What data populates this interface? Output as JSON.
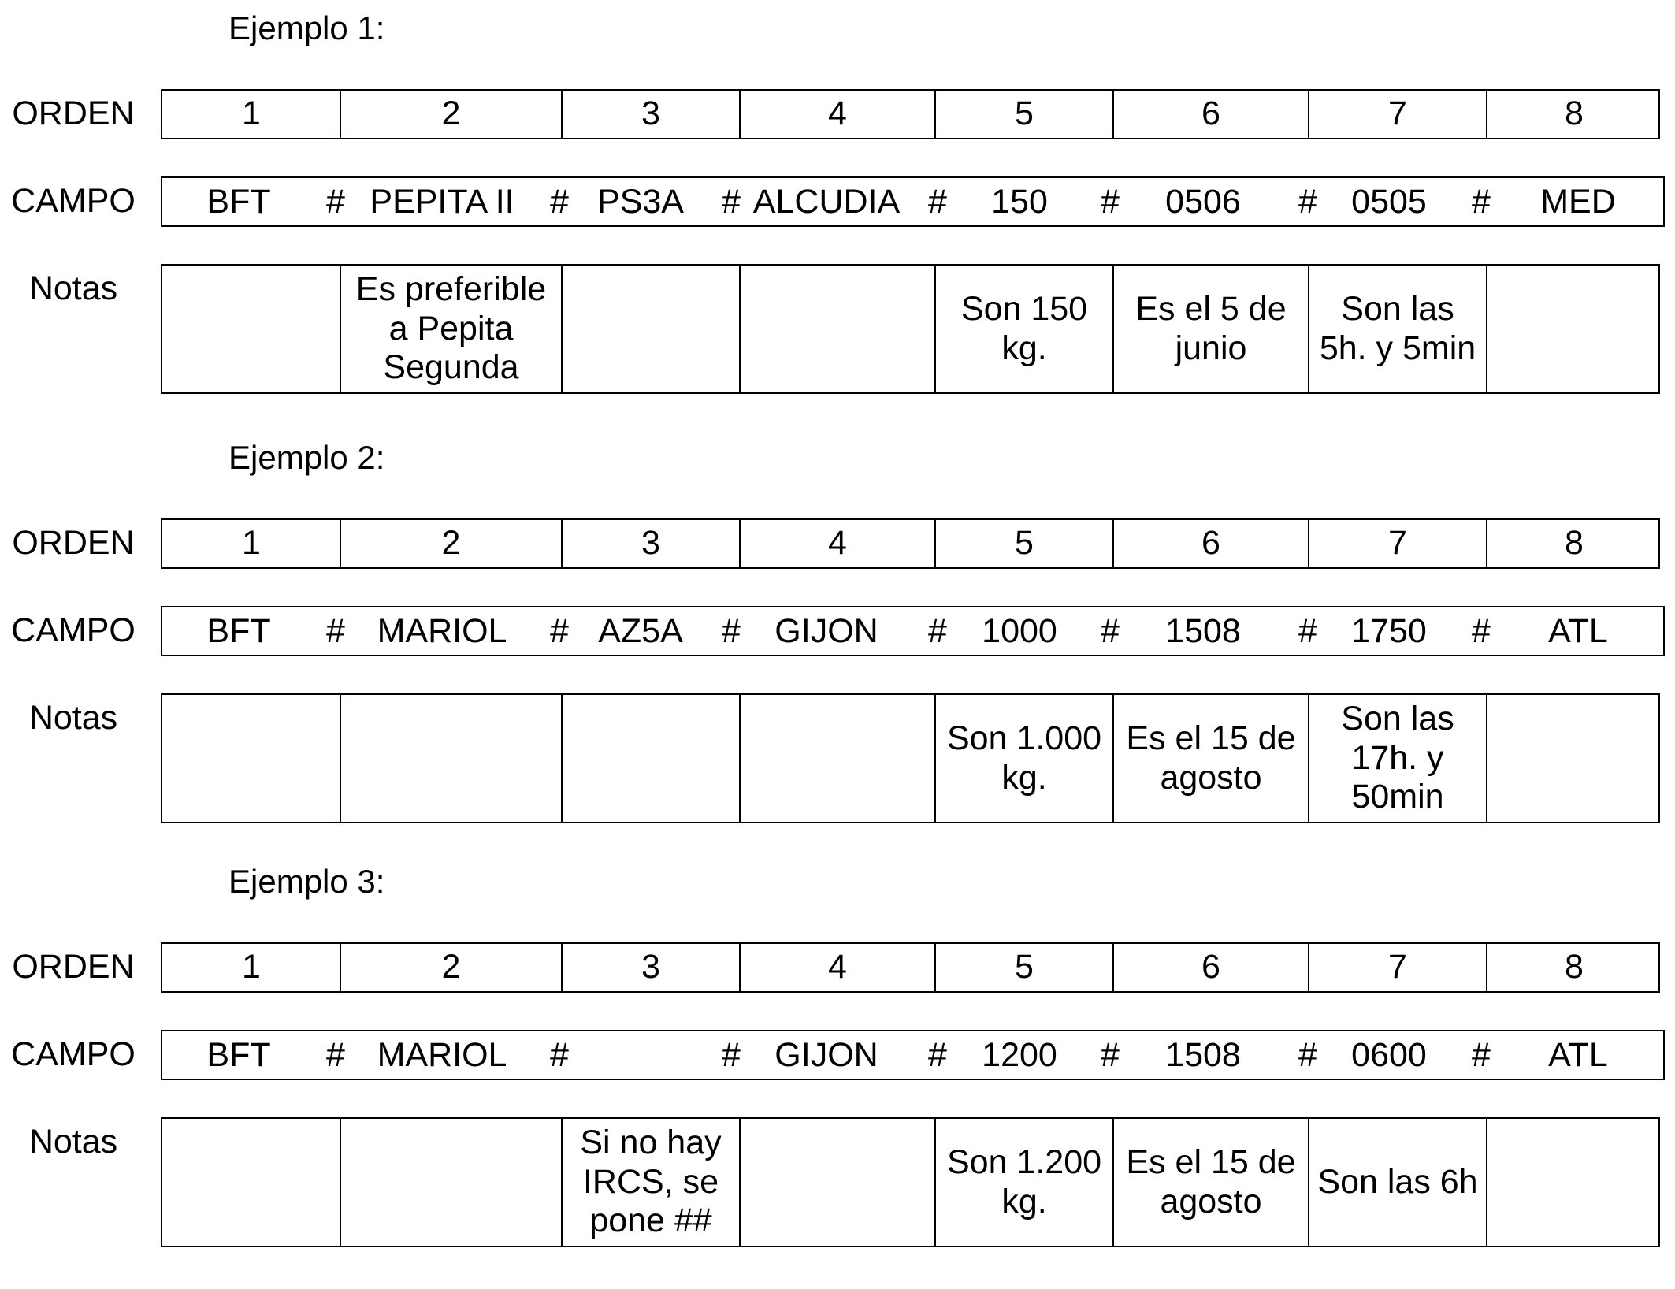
{
  "row_labels": {
    "orden": "ORDEN",
    "campo": "CAMPO",
    "notas": "Notas"
  },
  "ejemplos": [
    {
      "titulo": "Ejemplo 1:",
      "orden": [
        "1",
        "2",
        "3",
        "4",
        "5",
        "6",
        "7",
        "8"
      ],
      "campo": [
        "BFT",
        "#",
        "PEPITA II",
        "#",
        "PS3A",
        "#",
        "ALCUDIA",
        "#",
        "150",
        "#",
        "0506",
        "#",
        "0505",
        "#",
        "MED"
      ],
      "notas": [
        "",
        "Es preferible a Pepita Segunda",
        "",
        "",
        "Son 150 kg.",
        "Es el 5 de junio",
        "Son las 5h. y 5min",
        ""
      ]
    },
    {
      "titulo": "Ejemplo 2:",
      "orden": [
        "1",
        "2",
        "3",
        "4",
        "5",
        "6",
        "7",
        "8"
      ],
      "campo": [
        "BFT",
        "#",
        "MARIOL",
        "#",
        "AZ5A",
        "#",
        "GIJON",
        "#",
        "1000",
        "#",
        "1508",
        "#",
        "1750",
        "#",
        "ATL"
      ],
      "notas": [
        "",
        "",
        "",
        "",
        "Son 1.000 kg.",
        "Es el 15 de agosto",
        "Son las 17h. y 50min",
        ""
      ]
    },
    {
      "titulo": "Ejemplo 3:",
      "orden": [
        "1",
        "2",
        "3",
        "4",
        "5",
        "6",
        "7",
        "8"
      ],
      "campo": [
        "BFT",
        "#",
        "MARIOL",
        "#",
        "",
        "#",
        "GIJON",
        "#",
        "1200",
        "#",
        "1508",
        "#",
        "0600",
        "#",
        "ATL"
      ],
      "notas": [
        "",
        "",
        "Si no hay IRCS, se pone ##",
        "",
        "Son 1.200 kg.",
        "Es el 15 de agosto",
        "Son las 6h",
        ""
      ]
    }
  ]
}
